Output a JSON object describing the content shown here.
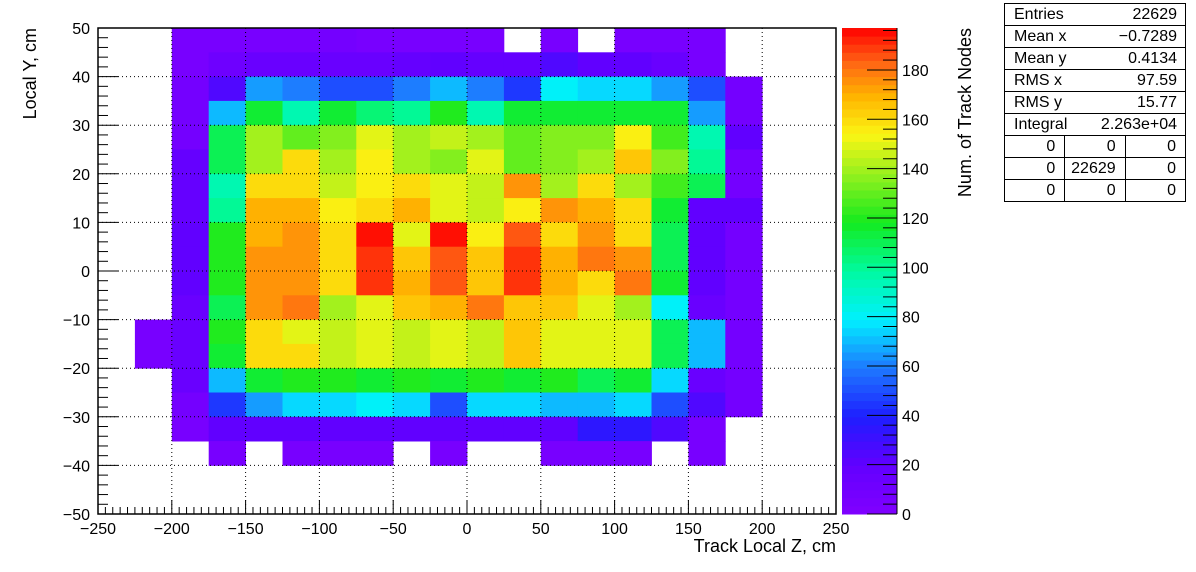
{
  "chart_data": {
    "type": "heatmap",
    "xlabel": "Track Local Z, cm",
    "ylabel": "Local Y, cm",
    "zlabel": "Num. of Track Nodes",
    "xlim": [
      -250,
      250
    ],
    "ylim": [
      -50,
      50
    ],
    "zlim": [
      0,
      197
    ],
    "x_ticks": [
      -250,
      -200,
      -150,
      -100,
      -50,
      0,
      50,
      100,
      150,
      200,
      250
    ],
    "y_ticks": [
      -50,
      -40,
      -30,
      -20,
      -10,
      0,
      10,
      20,
      30,
      40,
      50
    ],
    "z_ticks": [
      0,
      20,
      40,
      60,
      80,
      100,
      120,
      140,
      160,
      180
    ],
    "grid": true,
    "bin_width_x": 25,
    "bin_width_y": 5,
    "x_bin_edges_start": -225,
    "y_bin_edges_start": -40,
    "colormap": "rainbow (violet-blue-cyan-green-yellow-red)",
    "values": [
      [
        0,
        5,
        5,
        5,
        5,
        8,
        5,
        5,
        5,
        5,
        0,
        5,
        0,
        5,
        5,
        5,
        0
      ],
      [
        0,
        5,
        12,
        15,
        15,
        15,
        15,
        18,
        20,
        18,
        18,
        25,
        20,
        20,
        15,
        5,
        0
      ],
      [
        0,
        8,
        25,
        65,
        60,
        50,
        50,
        60,
        70,
        60,
        45,
        80,
        75,
        75,
        65,
        50,
        8
      ],
      [
        0,
        8,
        70,
        115,
        95,
        115,
        105,
        100,
        120,
        95,
        115,
        115,
        115,
        115,
        115,
        65,
        8
      ],
      [
        0,
        8,
        110,
        140,
        130,
        135,
        150,
        140,
        145,
        140,
        130,
        135,
        135,
        155,
        125,
        95,
        20
      ],
      [
        0,
        18,
        110,
        140,
        160,
        140,
        155,
        140,
        135,
        150,
        130,
        135,
        140,
        165,
        135,
        100,
        8
      ],
      [
        0,
        18,
        95,
        160,
        160,
        145,
        155,
        160,
        150,
        145,
        175,
        140,
        160,
        140,
        125,
        110,
        8
      ],
      [
        0,
        18,
        100,
        170,
        170,
        155,
        160,
        170,
        150,
        145,
        155,
        175,
        170,
        160,
        115,
        20,
        20
      ],
      [
        0,
        20,
        120,
        170,
        175,
        160,
        195,
        150,
        195,
        155,
        185,
        160,
        175,
        160,
        110,
        20,
        8
      ],
      [
        0,
        20,
        120,
        175,
        175,
        160,
        190,
        165,
        185,
        165,
        190,
        170,
        180,
        175,
        110,
        20,
        8
      ],
      [
        0,
        20,
        120,
        175,
        175,
        160,
        190,
        170,
        185,
        165,
        190,
        170,
        160,
        180,
        115,
        20,
        8
      ],
      [
        0,
        15,
        110,
        175,
        180,
        140,
        150,
        165,
        170,
        180,
        165,
        165,
        150,
        140,
        80,
        15,
        8
      ],
      [
        5,
        15,
        120,
        160,
        150,
        145,
        150,
        145,
        150,
        145,
        165,
        150,
        150,
        150,
        110,
        70,
        8
      ],
      [
        5,
        15,
        115,
        160,
        160,
        145,
        150,
        145,
        150,
        145,
        165,
        150,
        150,
        150,
        110,
        70,
        8
      ],
      [
        0,
        15,
        70,
        115,
        120,
        120,
        115,
        120,
        115,
        120,
        115,
        120,
        110,
        115,
        75,
        15,
        8
      ],
      [
        0,
        8,
        45,
        65,
        75,
        75,
        80,
        75,
        50,
        75,
        75,
        70,
        70,
        75,
        50,
        25,
        8
      ],
      [
        0,
        5,
        20,
        20,
        20,
        20,
        20,
        20,
        20,
        20,
        20,
        20,
        35,
        35,
        25,
        5,
        0
      ],
      [
        0,
        0,
        5,
        0,
        5,
        5,
        5,
        0,
        5,
        0,
        0,
        5,
        5,
        5,
        0,
        5,
        0
      ]
    ]
  },
  "stats": {
    "rows": [
      {
        "label": "Entries",
        "value": "22629"
      },
      {
        "label": "Mean x",
        "value": "−0.7289"
      },
      {
        "label": "Mean y",
        "value": "0.4134"
      },
      {
        "label": "RMS x",
        "value": "97.59"
      },
      {
        "label": "RMS y",
        "value": "15.77"
      },
      {
        "label": "Integral",
        "value": "2.263e+04"
      }
    ],
    "grid": [
      [
        "0",
        "0",
        "0"
      ],
      [
        "0",
        "22629",
        "0"
      ],
      [
        "0",
        "0",
        "0"
      ]
    ]
  }
}
